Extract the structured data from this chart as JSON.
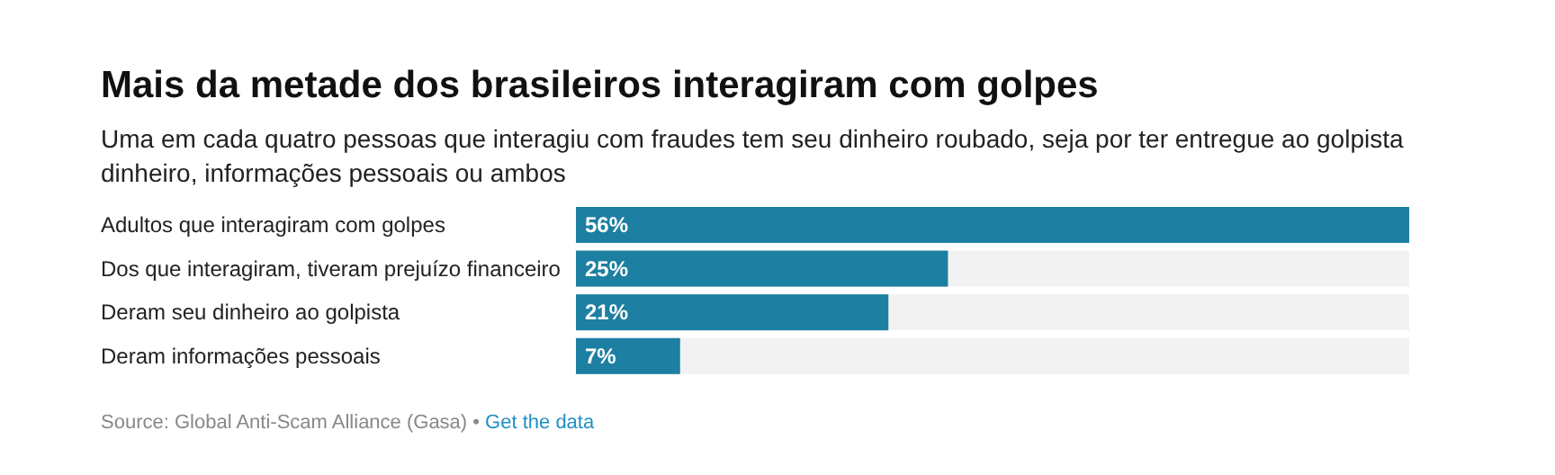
{
  "chart_data": {
    "type": "bar",
    "orientation": "horizontal",
    "title": "Mais da metade dos brasileiros interagiram com golpes",
    "subtitle": "Uma em cada quatro pessoas que interagiu com fraudes tem seu dinheiro roubado, seja por ter entregue ao golpista dinheiro, informações pessoais ou ambos",
    "categories": [
      "Adultos que interagiram com golpes",
      "Dos que interagiram, tiveram prejuízo financeiro",
      "Deram seu dinheiro ao golpista",
      "Deram informações pessoais"
    ],
    "values": [
      56,
      25,
      21,
      7
    ],
    "value_labels": [
      "56%",
      "25%",
      "21%",
      "7%"
    ],
    "color": "#1d7fa1",
    "annotations": [
      "Source: Global Anti-Scam Alliance (Gasa) •",
      "Get the data"
    ]
  }
}
